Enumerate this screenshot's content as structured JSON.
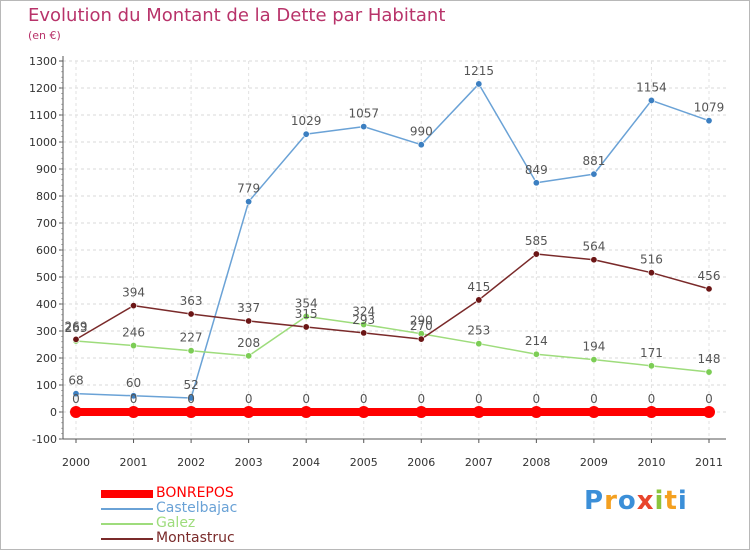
{
  "header": {
    "title": "Evolution du Montant de la Dette par Habitant",
    "unit": "(en €)"
  },
  "chart_data": {
    "type": "line",
    "title": "Evolution du Montant de la Dette par Habitant",
    "subtitle": "(en €)",
    "xlabel": "",
    "ylabel": "",
    "ylim": [
      -100,
      1300
    ],
    "ytick_step": 100,
    "grid": "horizontal dashed",
    "legend_position": "bottom-left",
    "categories": [
      "2000",
      "2001",
      "2002",
      "2003",
      "2004",
      "2005",
      "2006",
      "2007",
      "2008",
      "2009",
      "2010",
      "2011"
    ],
    "series": [
      {
        "name": "BONREPOS",
        "color": "#ff0000",
        "thick": true,
        "values": [
          0,
          0,
          0,
          0,
          0,
          0,
          0,
          0,
          0,
          0,
          0,
          0
        ]
      },
      {
        "name": "Castelbajac",
        "color": "#6aa2d6",
        "point": "#3c7fc1",
        "values": [
          68,
          60,
          52,
          779,
          1029,
          1057,
          990,
          1215,
          849,
          881,
          1154,
          1079
        ]
      },
      {
        "name": "Galez",
        "color": "#9edc7c",
        "point": "#7ccd55",
        "values": [
          263,
          246,
          227,
          208,
          354,
          324,
          290,
          253,
          214,
          194,
          171,
          148
        ]
      },
      {
        "name": "Montastruc",
        "color": "#7a2a2a",
        "point": "#6b1515",
        "values": [
          269,
          394,
          363,
          337,
          315,
          293,
          270,
          415,
          585,
          564,
          516,
          456
        ]
      }
    ]
  },
  "legend": {
    "items": [
      {
        "label": "BONREPOS",
        "color": "#ff0000"
      },
      {
        "label": "Castelbajac",
        "color": "#6aa2d6"
      },
      {
        "label": "Galez",
        "color": "#9edc7c"
      },
      {
        "label": "Montastruc",
        "color": "#7a2a2a"
      }
    ]
  },
  "logo": {
    "letters": [
      {
        "char": "P",
        "color": "#3b8fd8"
      },
      {
        "char": "r",
        "color": "#f4a020"
      },
      {
        "char": "o",
        "color": "#3b8fd8"
      },
      {
        "char": "x",
        "color": "#e8452c"
      },
      {
        "char": "i",
        "color": "#8cc43c"
      },
      {
        "char": "t",
        "color": "#f4a020"
      },
      {
        "char": "i",
        "color": "#3b8fd8"
      }
    ]
  }
}
